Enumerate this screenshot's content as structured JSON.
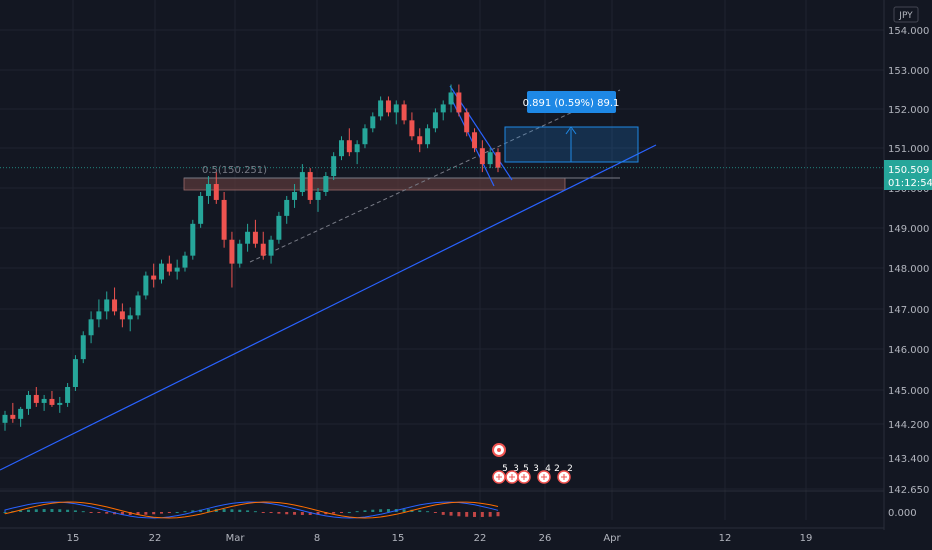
{
  "chart_data": {
    "type": "candlestick",
    "currency_label": "JPY",
    "y_ticks": [
      "154.000",
      "153.000",
      "152.000",
      "151.000",
      "150.000",
      "149.000",
      "148.000",
      "147.000",
      "146.000",
      "145.000",
      "144.200",
      "143.400",
      "142.650"
    ],
    "x_ticks": [
      "15",
      "22",
      "Mar",
      "8",
      "15",
      "22",
      "26",
      "Apr",
      "12",
      "19"
    ],
    "last_price": "150.509",
    "countdown": "01:12:54",
    "fib_label": "0.5(150.251)",
    "measure_label": "0.891 (0.59%) 89.1",
    "event_markers": [
      "5",
      "3",
      "5",
      "3",
      "4",
      "2",
      "2"
    ],
    "oscillator": {
      "tick_label": "0.000"
    },
    "colors": {
      "background": "#131722",
      "up": "#26a69a",
      "down": "#ef5350",
      "trendline": "#2962ff",
      "measure": "#1e88e5",
      "zone": "#5d3a3a",
      "text": "#b2b5be"
    },
    "grid": true,
    "candle_series": [
      [
        144.1,
        144.4,
        143.9,
        144.3
      ],
      [
        144.3,
        144.6,
        144.1,
        144.2
      ],
      [
        144.2,
        144.5,
        144.0,
        144.45
      ],
      [
        144.45,
        144.9,
        144.3,
        144.8
      ],
      [
        144.8,
        145.0,
        144.5,
        144.6
      ],
      [
        144.6,
        144.8,
        144.4,
        144.7
      ],
      [
        144.7,
        144.9,
        144.5,
        144.55
      ],
      [
        144.55,
        144.75,
        144.35,
        144.6
      ],
      [
        144.6,
        145.1,
        144.5,
        145.0
      ],
      [
        145.0,
        145.8,
        144.9,
        145.7
      ],
      [
        145.7,
        146.4,
        145.6,
        146.3
      ],
      [
        146.3,
        146.9,
        146.1,
        146.7
      ],
      [
        146.7,
        147.2,
        146.5,
        146.9
      ],
      [
        146.9,
        147.4,
        146.7,
        147.2
      ],
      [
        147.2,
        147.5,
        146.8,
        146.9
      ],
      [
        146.9,
        147.1,
        146.5,
        146.7
      ],
      [
        146.7,
        147.0,
        146.4,
        146.8
      ],
      [
        146.8,
        147.4,
        146.7,
        147.3
      ],
      [
        147.3,
        147.9,
        147.2,
        147.8
      ],
      [
        147.8,
        148.1,
        147.5,
        147.7
      ],
      [
        147.7,
        148.2,
        147.6,
        148.1
      ],
      [
        148.1,
        148.3,
        147.8,
        147.9
      ],
      [
        147.9,
        148.2,
        147.7,
        148.0
      ],
      [
        148.0,
        148.4,
        147.9,
        148.3
      ],
      [
        148.3,
        149.2,
        148.2,
        149.1
      ],
      [
        149.1,
        149.9,
        149.0,
        149.8
      ],
      [
        149.8,
        150.3,
        149.6,
        150.1
      ],
      [
        150.1,
        150.4,
        149.6,
        149.7
      ],
      [
        149.7,
        149.9,
        148.5,
        148.7
      ],
      [
        148.7,
        148.9,
        147.5,
        148.1
      ],
      [
        148.1,
        148.7,
        148.0,
        148.6
      ],
      [
        148.6,
        149.1,
        148.4,
        148.9
      ],
      [
        148.9,
        149.2,
        148.5,
        148.6
      ],
      [
        148.6,
        148.9,
        148.2,
        148.3
      ],
      [
        148.3,
        148.8,
        148.1,
        148.7
      ],
      [
        148.7,
        149.4,
        148.6,
        149.3
      ],
      [
        149.3,
        149.8,
        149.1,
        149.7
      ],
      [
        149.7,
        150.1,
        149.5,
        149.9
      ],
      [
        149.9,
        150.6,
        149.8,
        150.4
      ],
      [
        150.4,
        150.5,
        149.6,
        149.7
      ],
      [
        149.7,
        150.0,
        149.4,
        149.9
      ],
      [
        149.9,
        150.4,
        149.8,
        150.3
      ],
      [
        150.3,
        150.9,
        150.2,
        150.8
      ],
      [
        150.8,
        151.3,
        150.7,
        151.2
      ],
      [
        151.2,
        151.5,
        150.8,
        150.9
      ],
      [
        150.9,
        151.2,
        150.6,
        151.1
      ],
      [
        151.1,
        151.6,
        151.0,
        151.5
      ],
      [
        151.5,
        151.9,
        151.4,
        151.8
      ],
      [
        151.8,
        152.3,
        151.7,
        152.2
      ],
      [
        152.2,
        152.3,
        151.8,
        151.9
      ],
      [
        151.9,
        152.2,
        151.6,
        152.1
      ],
      [
        152.1,
        152.2,
        151.6,
        151.7
      ],
      [
        151.7,
        151.9,
        151.2,
        151.3
      ],
      [
        151.3,
        151.5,
        150.9,
        151.1
      ],
      [
        151.1,
        151.6,
        151.0,
        151.5
      ],
      [
        151.5,
        152.0,
        151.4,
        151.9
      ],
      [
        151.9,
        152.2,
        151.7,
        152.1
      ],
      [
        152.1,
        152.6,
        151.9,
        152.4
      ],
      [
        152.4,
        152.6,
        151.8,
        151.9
      ],
      [
        151.9,
        152.0,
        151.3,
        151.4
      ],
      [
        151.4,
        151.5,
        150.9,
        151.0
      ],
      [
        151.0,
        151.2,
        150.4,
        150.6
      ],
      [
        150.6,
        151.0,
        150.5,
        150.9
      ],
      [
        150.9,
        151.0,
        150.4,
        150.51
      ]
    ]
  }
}
